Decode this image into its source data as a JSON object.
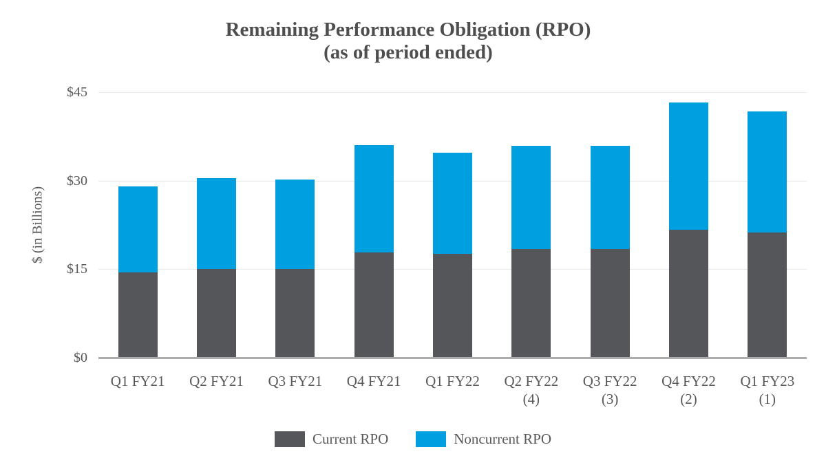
{
  "title": {
    "line1": "Remaining Performance Obligation (RPO)",
    "line2": "(as of period ended)"
  },
  "y_axis": {
    "label": "$ (in Billions)",
    "tick_labels": [
      "$45",
      "$30",
      "$15",
      "$0"
    ],
    "tick_values": [
      45,
      30,
      15,
      0
    ],
    "max": 45
  },
  "x_axis": {
    "categories": [
      "Q1 FY21",
      "Q2 FY21",
      "Q3 FY21",
      "Q4 FY21",
      "Q1 FY22",
      "Q2 FY22",
      "Q3 FY22",
      "Q4 FY22",
      "Q1 FY23"
    ],
    "notes": [
      "",
      "",
      "",
      "",
      "",
      "(4)",
      "(3)",
      "(2)",
      "(1)"
    ]
  },
  "legend": {
    "items": [
      {
        "label": "Current RPO",
        "color": "#55565A"
      },
      {
        "label": "Noncurrent RPO",
        "color": "#009FE0"
      }
    ]
  },
  "colors": {
    "current": "#55565A",
    "noncurrent": "#009FE0",
    "gridline": "#E9E9E9",
    "axis_line": "#ABABAB",
    "axis_text": "#595959",
    "title_text": "#4E4E4E",
    "background": "#FFFFFF"
  },
  "chart_data": {
    "type": "bar",
    "stacked": true,
    "title": "Remaining Performance Obligation (RPO) (as of period ended)",
    "xlabel": "",
    "ylabel": "$ (in Billions)",
    "ylim": [
      0,
      45
    ],
    "yticks": [
      0,
      15,
      30,
      45
    ],
    "grid": true,
    "legend_position": "bottom",
    "categories": [
      "Q1 FY21",
      "Q2 FY21",
      "Q3 FY21",
      "Q4 FY21",
      "Q1 FY22",
      "Q2 FY22 (4)",
      "Q3 FY22 (3)",
      "Q4 FY22 (2)",
      "Q1 FY23 (1)"
    ],
    "series": [
      {
        "name": "Current RPO",
        "color": "#55565A",
        "values": [
          14.4,
          15.0,
          15.0,
          17.8,
          17.6,
          18.4,
          18.4,
          21.7,
          21.2
        ]
      },
      {
        "name": "Noncurrent RPO",
        "color": "#009FE0",
        "values": [
          14.6,
          15.4,
          15.2,
          18.2,
          17.2,
          17.5,
          17.5,
          21.6,
          20.5
        ]
      }
    ]
  }
}
